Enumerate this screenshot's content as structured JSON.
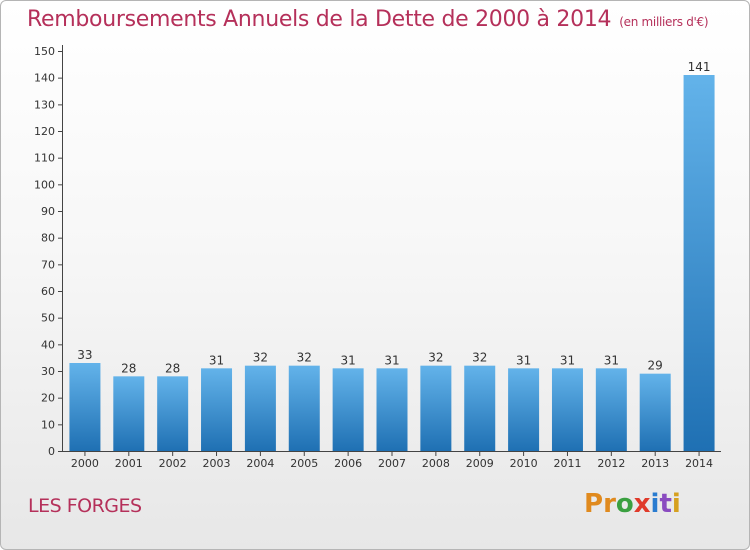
{
  "title": "Remboursements Annuels de la Dette de 2000 à 2014",
  "unit": "(en milliers d'€)",
  "commune": "LES FORGES",
  "brand": {
    "letters": [
      "P",
      "r",
      "o",
      "x",
      "i",
      "t",
      "i"
    ],
    "colors": [
      "#e08a1e",
      "#e08a1e",
      "#3aa040",
      "#e03a2a",
      "#2a7cd0",
      "#8a4bc0",
      "#d6a020"
    ]
  },
  "colors": {
    "bar_light": "#63b3ea",
    "bar_dark": "#1f70b3",
    "title": "#b5305a"
  },
  "chart_data": {
    "type": "bar",
    "categories": [
      "2000",
      "2001",
      "2002",
      "2003",
      "2004",
      "2005",
      "2006",
      "2007",
      "2008",
      "2009",
      "2010",
      "2011",
      "2012",
      "2013",
      "2014"
    ],
    "values": [
      33,
      28,
      28,
      31,
      32,
      32,
      31,
      31,
      32,
      32,
      31,
      31,
      31,
      29,
      141
    ],
    "ylim": [
      0,
      150
    ],
    "yticks": [
      0,
      10,
      20,
      30,
      40,
      50,
      60,
      70,
      80,
      90,
      100,
      110,
      120,
      130,
      140,
      150
    ],
    "grid": false
  }
}
